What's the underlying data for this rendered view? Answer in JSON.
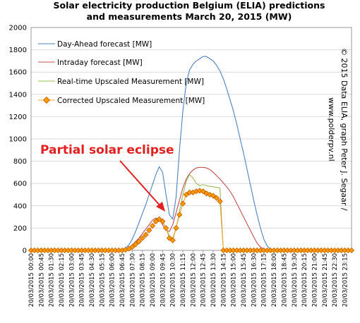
{
  "chart_data": {
    "type": "line",
    "title_line1": "Solar electricity production Belgium (ELIA) predictions",
    "title_line2": "and measurements March 20, 2015 (MW)",
    "ylim": [
      0,
      2000
    ],
    "yticks": [
      0,
      200,
      400,
      600,
      800,
      1000,
      1200,
      1400,
      1600,
      1800,
      2000
    ],
    "grid": true,
    "legend_position": "top-left",
    "credit_line1": "© 2015 Data ELIA, graph Peter J. Segaar /",
    "credit_line2": "www.polderpv.nl",
    "annotation": "Partial solar eclipse",
    "x": [
      "00:00",
      "00:15",
      "00:30",
      "00:45",
      "01:00",
      "01:15",
      "01:30",
      "01:45",
      "02:00",
      "02:15",
      "02:30",
      "02:45",
      "03:00",
      "03:15",
      "03:30",
      "03:45",
      "04:00",
      "04:15",
      "04:30",
      "04:45",
      "05:00",
      "05:15",
      "05:30",
      "05:45",
      "06:00",
      "06:15",
      "06:30",
      "06:45",
      "07:00",
      "07:15",
      "07:30",
      "07:45",
      "08:00",
      "08:15",
      "08:30",
      "08:45",
      "09:00",
      "09:15",
      "09:30",
      "09:45",
      "10:00",
      "10:15",
      "10:30",
      "10:45",
      "11:00",
      "11:15",
      "11:30",
      "11:45",
      "12:00",
      "12:15",
      "12:30",
      "12:45",
      "13:00",
      "13:15",
      "13:30",
      "13:45",
      "14:00",
      "14:15",
      "14:30",
      "14:45",
      "15:00",
      "15:15",
      "15:30",
      "15:45",
      "16:00",
      "16:15",
      "16:30",
      "16:45",
      "17:00",
      "17:15",
      "17:30",
      "17:45",
      "18:00",
      "18:15",
      "18:30",
      "18:45",
      "19:00",
      "19:15",
      "19:30",
      "19:45",
      "20:00",
      "20:15",
      "20:30",
      "20:45",
      "21:00",
      "21:15",
      "21:30",
      "21:45",
      "22:00",
      "22:15",
      "22:30",
      "22:45",
      "23:00",
      "23:15",
      "23:30",
      "23:45"
    ],
    "x_tick_labels": [
      "20/03/2015 00:00",
      "20/03/2015 00:45",
      "20/03/2015 01:30",
      "20/03/2015 02:15",
      "20/03/2015 03:00",
      "20/03/2015 03:45",
      "20/03/2015 04:30",
      "20/03/2015 05:15",
      "20/03/2015 06:00",
      "20/03/2015 06:45",
      "20/03/2015 07:30",
      "20/03/2015 08:15",
      "20/03/2015 09:00",
      "20/03/2015 09:45",
      "20/03/2015 10:30",
      "20/03/2015 11:15",
      "20/03/2015 12:00",
      "20/03/2015 12:45",
      "20/03/2015 13:30",
      "20/03/2015 14:15",
      "20/03/2015 15:00",
      "20/03/2015 15:45",
      "20/03/2015 16:30",
      "20/03/2015 17:15",
      "20/03/2015 18:00",
      "20/03/2015 18:45",
      "20/03/2015 19:30",
      "20/03/2015 20:15",
      "20/03/2015 21:00",
      "20/03/2015 21:45",
      "20/03/2015 22:30",
      "20/03/2015 23:15"
    ],
    "series": [
      {
        "name": "Day-Ahead forecast [MW]",
        "color": "#4f81bd",
        "marker": "none",
        "values": [
          0,
          0,
          0,
          0,
          0,
          0,
          0,
          0,
          0,
          0,
          0,
          0,
          0,
          0,
          0,
          0,
          0,
          0,
          0,
          0,
          0,
          0,
          0,
          0,
          0,
          0,
          0,
          5,
          20,
          50,
          100,
          170,
          250,
          330,
          410,
          500,
          590,
          680,
          750,
          700,
          500,
          320,
          280,
          480,
          900,
          1250,
          1500,
          1620,
          1670,
          1700,
          1720,
          1740,
          1740,
          1720,
          1700,
          1660,
          1610,
          1540,
          1450,
          1350,
          1250,
          1130,
          1000,
          870,
          730,
          590,
          450,
          320,
          200,
          100,
          40,
          10,
          0,
          0,
          0,
          0,
          0,
          0,
          0,
          0,
          0,
          0,
          0,
          0,
          0,
          0,
          0,
          0,
          0,
          0,
          0,
          0,
          0,
          0,
          0,
          0
        ]
      },
      {
        "name": "Intraday forecast [MW]",
        "color": "#c0504d",
        "marker": "none",
        "values": [
          0,
          0,
          0,
          0,
          0,
          0,
          0,
          0,
          0,
          0,
          0,
          0,
          0,
          0,
          0,
          0,
          0,
          0,
          0,
          0,
          0,
          0,
          0,
          0,
          0,
          0,
          0,
          2,
          10,
          25,
          50,
          80,
          110,
          150,
          190,
          230,
          270,
          290,
          280,
          230,
          180,
          170,
          230,
          340,
          450,
          560,
          640,
          690,
          720,
          740,
          745,
          745,
          740,
          725,
          700,
          670,
          640,
          605,
          570,
          530,
          480,
          420,
          360,
          300,
          240,
          180,
          120,
          65,
          30,
          10,
          0,
          0,
          0,
          0,
          0,
          0,
          0,
          0,
          0,
          0,
          0,
          0,
          0,
          0,
          0,
          0,
          0,
          0,
          0,
          0,
          0,
          0,
          0,
          0,
          0,
          0
        ]
      },
      {
        "name": "Real-time Upscaled Measurement [MW]",
        "color": "#9bbb59",
        "marker": "none",
        "values": [
          0,
          0,
          0,
          0,
          0,
          0,
          0,
          0,
          0,
          0,
          0,
          0,
          0,
          0,
          0,
          0,
          0,
          0,
          0,
          0,
          0,
          0,
          0,
          0,
          0,
          0,
          0,
          0,
          5,
          15,
          30,
          55,
          80,
          110,
          140,
          180,
          220,
          260,
          280,
          260,
          200,
          130,
          110,
          200,
          350,
          500,
          620,
          680,
          650,
          600,
          580,
          590,
          580,
          575,
          570,
          565,
          560,
          0,
          0,
          0,
          0,
          0,
          0,
          0,
          0,
          0,
          0,
          0,
          0,
          0,
          0,
          0,
          0,
          0,
          0,
          0,
          0,
          0,
          0,
          0,
          0,
          0,
          0,
          0,
          0,
          0,
          0,
          0,
          0,
          0,
          0,
          0,
          0,
          0,
          0,
          0
        ]
      },
      {
        "name": "Corrected Upscaled Measurement [MW]",
        "color": "#f7a239",
        "marker": "diamond",
        "values": [
          0,
          0,
          0,
          0,
          0,
          0,
          0,
          0,
          0,
          0,
          0,
          0,
          0,
          0,
          0,
          0,
          0,
          0,
          0,
          0,
          0,
          0,
          0,
          0,
          0,
          0,
          0,
          0,
          5,
          15,
          30,
          55,
          80,
          110,
          140,
          180,
          220,
          260,
          280,
          260,
          200,
          110,
          90,
          200,
          320,
          420,
          500,
          520,
          520,
          530,
          535,
          530,
          510,
          500,
          490,
          470,
          440,
          0,
          0,
          0,
          0,
          0,
          0,
          0,
          0,
          0,
          0,
          0,
          0,
          0,
          0,
          0,
          0,
          0,
          0,
          0,
          0,
          0,
          0,
          0,
          0,
          0,
          0,
          0,
          0,
          0,
          0,
          0,
          0,
          0,
          0,
          0,
          0,
          0,
          0,
          0
        ]
      }
    ]
  }
}
